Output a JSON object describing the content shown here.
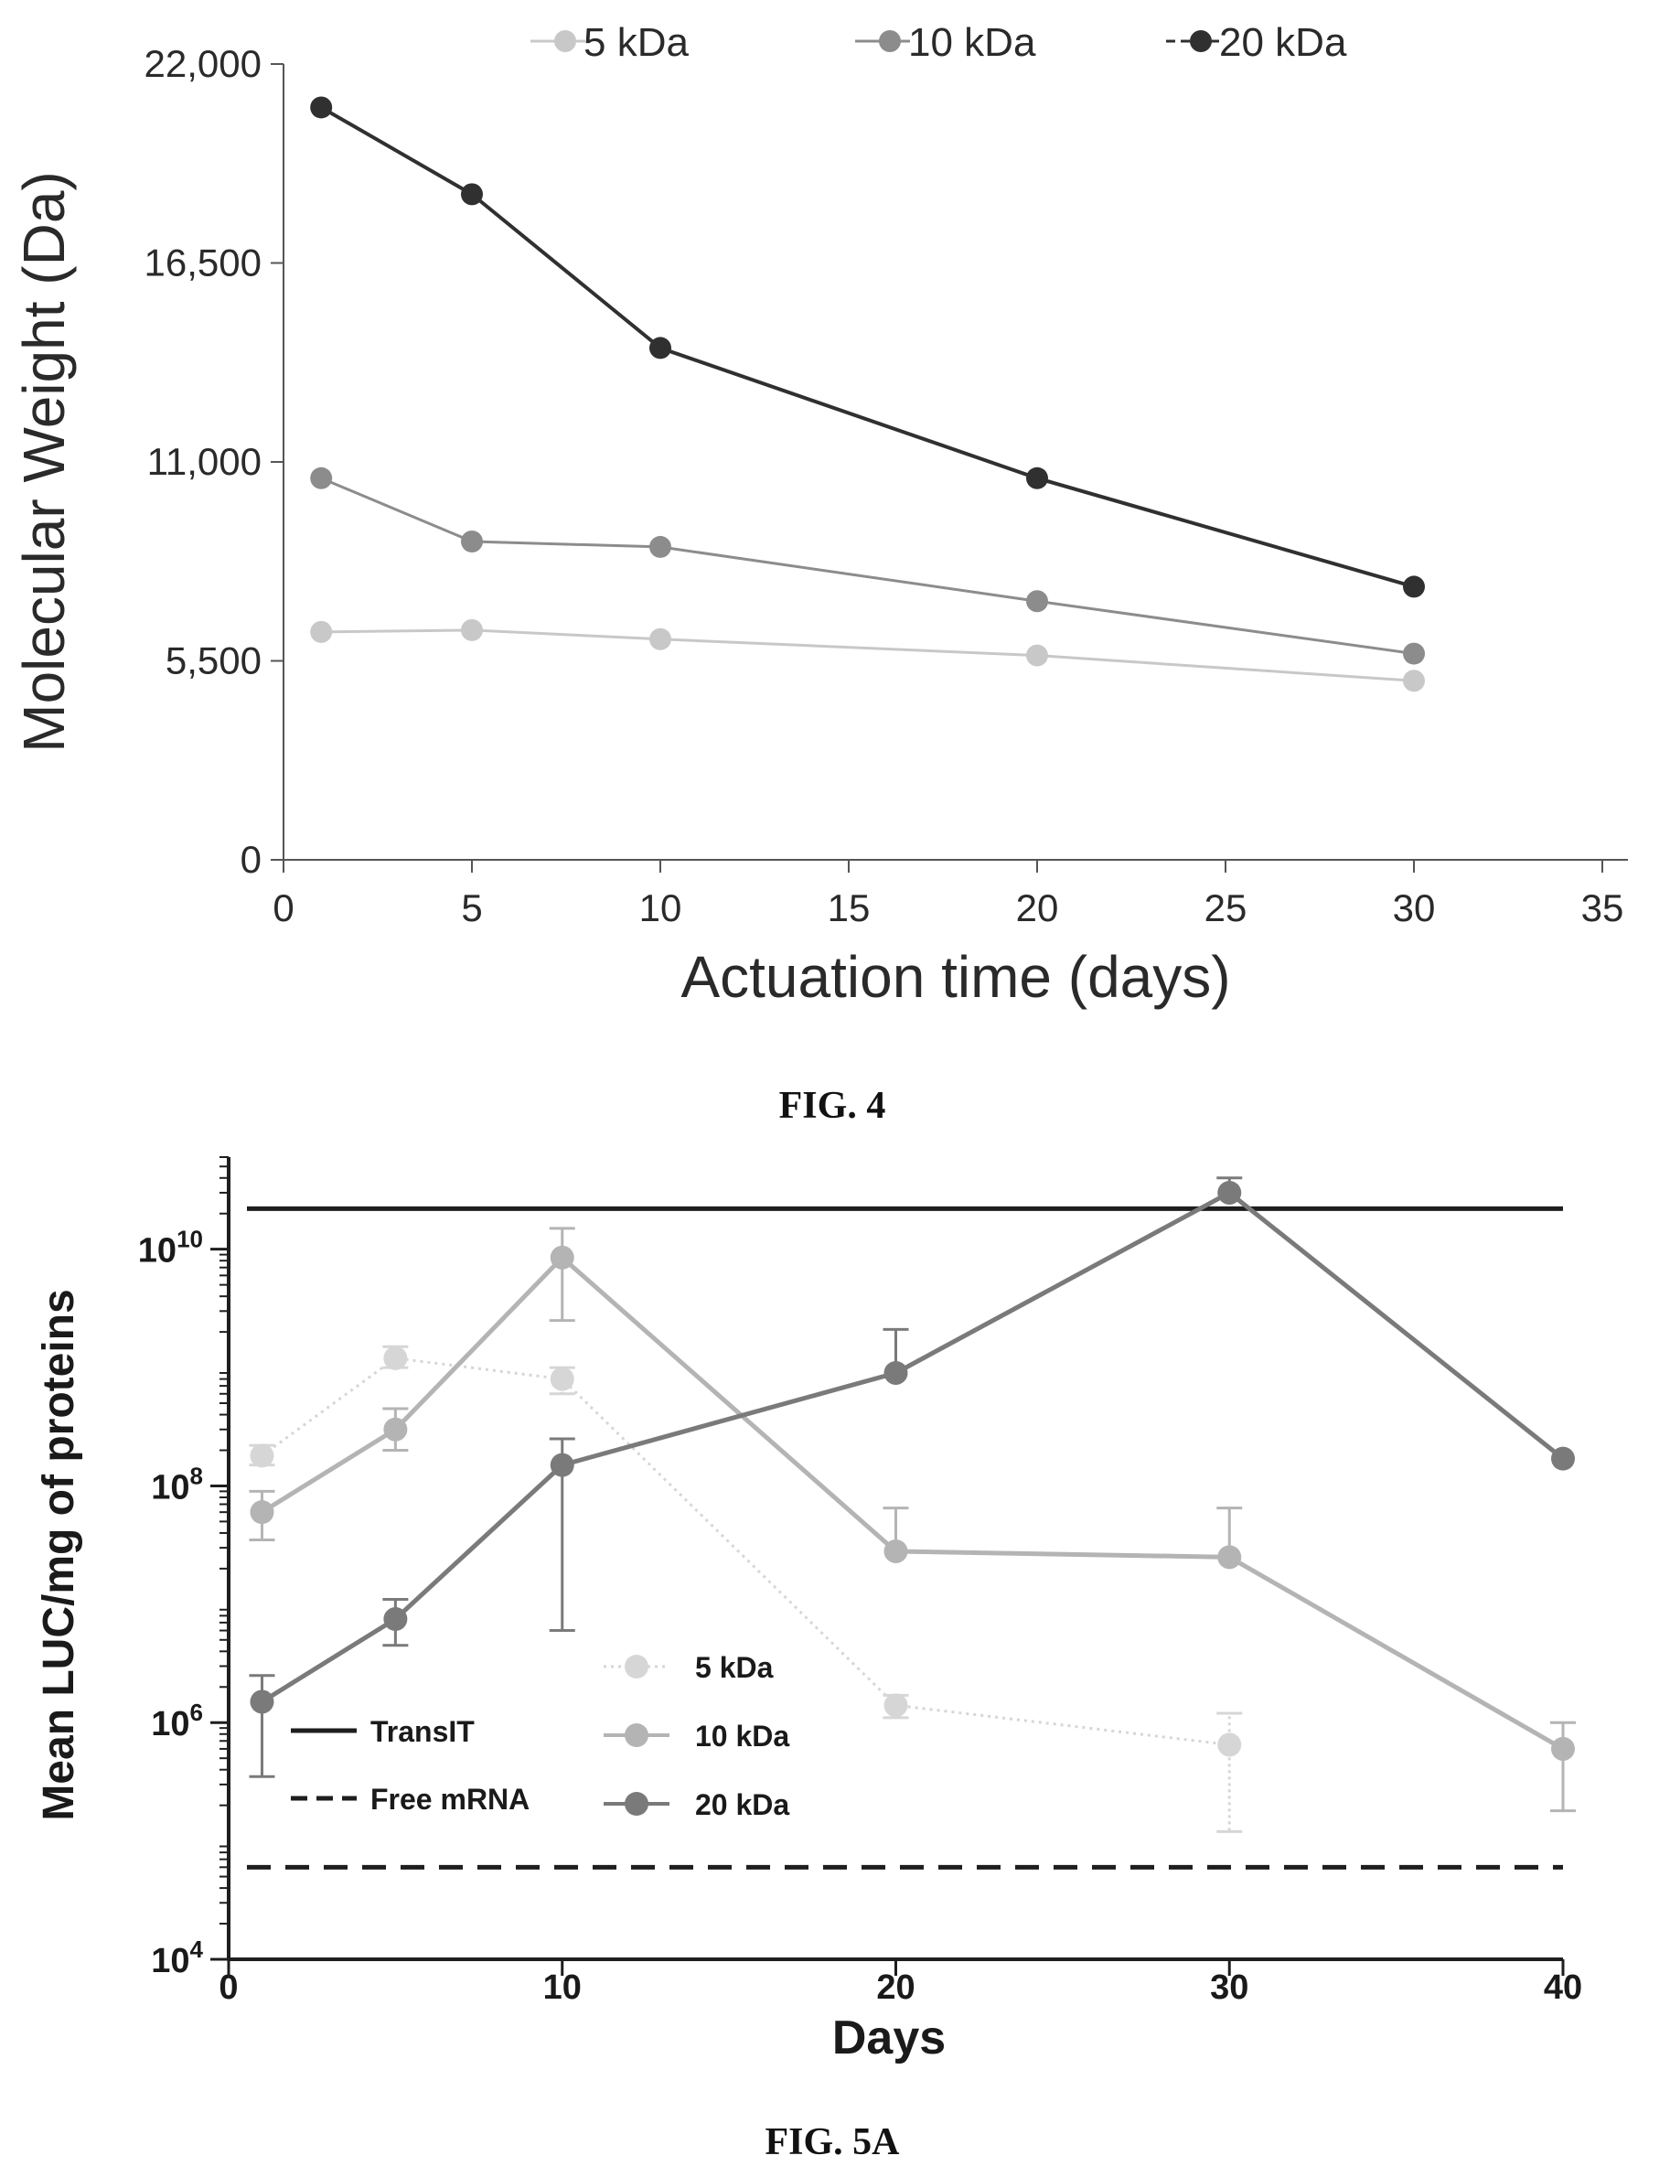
{
  "figures": [
    {
      "caption": "FIG. 4"
    },
    {
      "caption": "FIG. 5A"
    }
  ],
  "chart_data": [
    {
      "type": "line",
      "title": "",
      "xlabel": "Actuation time (days)",
      "ylabel": "Molecular Weight (Da)",
      "xlim": [
        0,
        35
      ],
      "ylim": [
        0,
        22000
      ],
      "xticks": [
        0,
        5,
        10,
        15,
        20,
        25,
        30,
        35
      ],
      "xtick_labels": [
        "0",
        "5",
        "10",
        "15",
        "20",
        "25",
        "30",
        "35"
      ],
      "yticks": [
        0,
        5500,
        11000,
        16500,
        22000
      ],
      "ytick_labels": [
        "0",
        "5,500",
        "11,000",
        "16,500",
        "22,000"
      ],
      "grid": false,
      "legend_position": "top",
      "x": [
        1,
        5,
        10,
        20,
        30
      ],
      "series": [
        {
          "name": "5 kDa",
          "color": "#c8c8c8",
          "values": [
            6300,
            6350,
            6100,
            5650,
            4950
          ]
        },
        {
          "name": "10 kDa",
          "color": "#8c8c8c",
          "values": [
            10550,
            8800,
            8650,
            7150,
            5700
          ]
        },
        {
          "name": "20 kDa",
          "color": "#303030",
          "values": [
            20800,
            18400,
            14150,
            10550,
            7550
          ]
        }
      ]
    },
    {
      "type": "line",
      "title": "",
      "xlabel": "Days",
      "ylabel": "Mean LUC/mg of proteins",
      "yscale": "log",
      "xlim": [
        0,
        40
      ],
      "ylim": [
        10000,
        60000000000
      ],
      "xticks": [
        0,
        10,
        20,
        30,
        40
      ],
      "xtick_labels": [
        "0",
        "10",
        "20",
        "30",
        "40"
      ],
      "yticks": [
        10000,
        1000000,
        100000000,
        10000000000
      ],
      "ytick_labels": [
        {
          "base": "10",
          "exp": "4"
        },
        {
          "base": "10",
          "exp": "6"
        },
        {
          "base": "10",
          "exp": "8"
        },
        {
          "base": "10",
          "exp": "10"
        }
      ],
      "grid": false,
      "legend_position": "bottom-center",
      "reference_lines": [
        {
          "name": "TransIT",
          "style": "solid",
          "color": "#1e1e1e",
          "value": 22000000000
        },
        {
          "name": "Free mRNA",
          "style": "dashed",
          "color": "#1e1e1e",
          "value": 60000
        }
      ],
      "x": [
        1,
        5,
        10,
        20,
        30,
        40
      ],
      "series": [
        {
          "name": "5 kDa",
          "color": "#d6d6d6",
          "style": "dotted",
          "values": [
            180000000,
            1200000000,
            800000000,
            1400000,
            650000,
            null
          ],
          "error_upper": [
            220000000,
            1500000000,
            1000000000,
            1700000,
            1200000,
            null
          ],
          "error_lower": [
            150000000,
            1000000000,
            600000000,
            1100000,
            120000,
            null
          ]
        },
        {
          "name": "10 kDa",
          "color": "#b4b4b4",
          "style": "solid",
          "values": [
            60000000,
            300000000,
            8500000000,
            28000000,
            25000000,
            600000
          ],
          "error_upper": [
            90000000,
            450000000,
            15000000000,
            65000000,
            65000000,
            1000000
          ],
          "error_lower": [
            35000000,
            200000000,
            2500000000,
            null,
            null,
            180000
          ]
        },
        {
          "name": "20 kDa",
          "color": "#7a7a7a",
          "style": "solid",
          "values": [
            1500000,
            7500000,
            150000000,
            900000000,
            30000000000,
            170000000
          ],
          "error_upper": [
            2500000,
            11000000,
            250000000,
            2100000000,
            40000000000,
            null
          ],
          "error_lower": [
            350000,
            4500000,
            6000000,
            null,
            null,
            null
          ]
        }
      ]
    }
  ]
}
